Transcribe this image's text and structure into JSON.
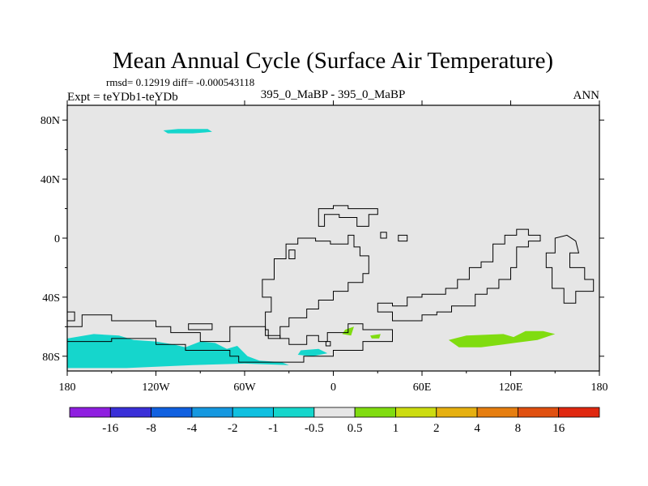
{
  "chart_data": {
    "type": "heatmap",
    "title": "Mean Annual Cycle (Surface Air Temperature)",
    "stats_line": "rmsd= 0.12919 diff= -0.000543118",
    "left_label": "Expt = teYDb1-teYDb",
    "center_label": "395_0_MaBP - 395_0_MaBP",
    "right_label": "ANN",
    "x_axis": {
      "range": [
        -180,
        180
      ],
      "ticks": [
        -180,
        -120,
        -60,
        0,
        60,
        120,
        180
      ],
      "tick_labels": [
        "180",
        "120W",
        "60W",
        "0",
        "60E",
        "120E",
        "180"
      ]
    },
    "y_axis": {
      "range": [
        -90,
        90
      ],
      "ticks": [
        80,
        40,
        0,
        -40,
        -80
      ],
      "tick_labels": [
        "80N",
        "40N",
        "0",
        "40S",
        "80S"
      ]
    },
    "colorbar": {
      "boundaries": [
        "-16",
        "-8",
        "-4",
        "-2",
        "-1",
        "-0.5",
        "0.5",
        "1",
        "2",
        "4",
        "8",
        "16"
      ],
      "colors": [
        "#8f1fe0",
        "#3a2fd8",
        "#1060e0",
        "#1598e0",
        "#10c0e0",
        "#15d6cc",
        "#e6e6e6",
        "#80dc10",
        "#ccdc10",
        "#e6b010",
        "#e67e10",
        "#e05010",
        "#e02810"
      ]
    },
    "regions": [
      {
        "name": "arctic-anomaly",
        "value_class": "-0.5 to -1",
        "points": [
          [
            -115,
            73
          ],
          [
            -105,
            74
          ],
          [
            -85,
            74
          ],
          [
            -82,
            72
          ],
          [
            -95,
            71
          ],
          [
            -112,
            71
          ]
        ]
      },
      {
        "name": "antarctic-anomaly",
        "value_class": "-0.5 to -1",
        "points": [
          [
            -180,
            -68
          ],
          [
            -162,
            -65
          ],
          [
            -145,
            -66
          ],
          [
            -135,
            -69
          ],
          [
            -120,
            -70
          ],
          [
            -108,
            -72
          ],
          [
            -100,
            -74
          ],
          [
            -90,
            -70
          ],
          [
            -80,
            -71
          ],
          [
            -72,
            -75
          ],
          [
            -65,
            -73
          ],
          [
            -58,
            -80
          ],
          [
            -50,
            -83
          ],
          [
            -35,
            -84
          ],
          [
            -30,
            -86
          ],
          [
            -60,
            -85
          ],
          [
            -95,
            -86
          ],
          [
            -140,
            -88
          ],
          [
            -180,
            -88
          ]
        ]
      },
      {
        "name": "weddell-anomaly",
        "value_class": "-0.5 to -1",
        "points": [
          [
            -22,
            -76
          ],
          [
            -10,
            -75
          ],
          [
            -4,
            -78
          ],
          [
            -14,
            -80
          ],
          [
            -24,
            -79
          ]
        ]
      },
      {
        "name": "small-positive-1",
        "value_class": "0.5 to 1",
        "points": [
          [
            8,
            -62
          ],
          [
            14,
            -60
          ],
          [
            12,
            -66
          ],
          [
            6,
            -65
          ]
        ]
      },
      {
        "name": "small-positive-2",
        "value_class": "0.5 to 1",
        "points": [
          [
            25,
            -66
          ],
          [
            32,
            -65
          ],
          [
            31,
            -68
          ],
          [
            26,
            -68
          ]
        ]
      },
      {
        "name": "east-antarctic-positive",
        "value_class": "0.5 to 1",
        "points": [
          [
            78,
            -69
          ],
          [
            90,
            -66
          ],
          [
            115,
            -65
          ],
          [
            122,
            -67
          ],
          [
            130,
            -63
          ],
          [
            142,
            -63
          ],
          [
            150,
            -65
          ],
          [
            138,
            -69
          ],
          [
            115,
            -72
          ],
          [
            100,
            -74
          ],
          [
            85,
            -74
          ]
        ]
      }
    ],
    "continent_outlines": [
      {
        "name": "north-continent",
        "points": [
          [
            -10,
            20
          ],
          [
            0,
            20
          ],
          [
            0,
            22
          ],
          [
            10,
            22
          ],
          [
            10,
            20
          ],
          [
            30,
            20
          ],
          [
            30,
            16
          ],
          [
            24,
            16
          ],
          [
            24,
            8
          ],
          [
            16,
            8
          ],
          [
            16,
            14
          ],
          [
            4,
            14
          ],
          [
            4,
            16
          ],
          [
            -6,
            16
          ],
          [
            -6,
            8
          ],
          [
            -10,
            8
          ]
        ]
      },
      {
        "name": "island-1",
        "points": [
          [
            32,
            4
          ],
          [
            36,
            4
          ],
          [
            36,
            0
          ],
          [
            32,
            0
          ]
        ]
      },
      {
        "name": "island-2",
        "points": [
          [
            44,
            2
          ],
          [
            50,
            2
          ],
          [
            50,
            -2
          ],
          [
            44,
            -2
          ]
        ]
      },
      {
        "name": "central-continent",
        "points": [
          [
            -24,
            0
          ],
          [
            -12,
            0
          ],
          [
            -12,
            -2
          ],
          [
            -2,
            -2
          ],
          [
            -2,
            -4
          ],
          [
            10,
            -4
          ],
          [
            10,
            2
          ],
          [
            14,
            2
          ],
          [
            14,
            -6
          ],
          [
            18,
            -6
          ],
          [
            18,
            -12
          ],
          [
            24,
            -12
          ],
          [
            24,
            -24
          ],
          [
            20,
            -24
          ],
          [
            20,
            -30
          ],
          [
            10,
            -30
          ],
          [
            10,
            -36
          ],
          [
            0,
            -36
          ],
          [
            0,
            -42
          ],
          [
            -10,
            -42
          ],
          [
            -10,
            -48
          ],
          [
            -18,
            -48
          ],
          [
            -18,
            -54
          ],
          [
            -30,
            -54
          ],
          [
            -30,
            -60
          ],
          [
            -36,
            -60
          ],
          [
            -36,
            -68
          ],
          [
            -44,
            -68
          ],
          [
            -44,
            -62
          ],
          [
            -46,
            -62
          ],
          [
            -46,
            -50
          ],
          [
            -42,
            -50
          ],
          [
            -42,
            -40
          ],
          [
            -48,
            -40
          ],
          [
            -48,
            -28
          ],
          [
            -40,
            -28
          ],
          [
            -40,
            -14
          ],
          [
            -32,
            -14
          ],
          [
            -32,
            -4
          ],
          [
            -24,
            -4
          ]
        ]
      },
      {
        "name": "side-island",
        "points": [
          [
            -30,
            -8
          ],
          [
            -26,
            -8
          ],
          [
            -26,
            -14
          ],
          [
            -30,
            -14
          ]
        ]
      },
      {
        "name": "east-continent",
        "points": [
          [
            30,
            -50
          ],
          [
            40,
            -50
          ],
          [
            40,
            -56
          ],
          [
            60,
            -56
          ],
          [
            60,
            -52
          ],
          [
            70,
            -52
          ],
          [
            70,
            -50
          ],
          [
            80,
            -50
          ],
          [
            80,
            -46
          ],
          [
            96,
            -46
          ],
          [
            96,
            -38
          ],
          [
            104,
            -38
          ],
          [
            104,
            -34
          ],
          [
            112,
            -34
          ],
          [
            112,
            -28
          ],
          [
            120,
            -28
          ],
          [
            120,
            -20
          ],
          [
            124,
            -20
          ],
          [
            124,
            -6
          ],
          [
            132,
            -6
          ],
          [
            132,
            -2
          ],
          [
            140,
            -2
          ],
          [
            140,
            2
          ],
          [
            132,
            2
          ],
          [
            132,
            6
          ],
          [
            124,
            6
          ],
          [
            124,
            2
          ],
          [
            116,
            2
          ],
          [
            116,
            -4
          ],
          [
            108,
            -4
          ],
          [
            108,
            -16
          ],
          [
            100,
            -16
          ],
          [
            100,
            -20
          ],
          [
            92,
            -20
          ],
          [
            92,
            -28
          ],
          [
            84,
            -28
          ],
          [
            84,
            -34
          ],
          [
            76,
            -34
          ],
          [
            76,
            -38
          ],
          [
            60,
            -38
          ],
          [
            60,
            -40
          ],
          [
            50,
            -40
          ],
          [
            50,
            -46
          ],
          [
            40,
            -46
          ],
          [
            40,
            -44
          ],
          [
            30,
            -44
          ]
        ]
      },
      {
        "name": "far-east-continent",
        "points": [
          [
            150,
            0
          ],
          [
            158,
            2
          ],
          [
            164,
            -2
          ],
          [
            166,
            -10
          ],
          [
            160,
            -10
          ],
          [
            160,
            -20
          ],
          [
            170,
            -20
          ],
          [
            170,
            -28
          ],
          [
            176,
            -28
          ],
          [
            176,
            -36
          ],
          [
            164,
            -36
          ],
          [
            164,
            -44
          ],
          [
            156,
            -44
          ],
          [
            156,
            -34
          ],
          [
            148,
            -34
          ],
          [
            148,
            -20
          ],
          [
            144,
            -20
          ],
          [
            144,
            -10
          ],
          [
            150,
            -10
          ]
        ]
      },
      {
        "name": "small-square",
        "points": [
          [
            -5,
            -70
          ],
          [
            -2,
            -70
          ],
          [
            -2,
            -73
          ],
          [
            -5,
            -73
          ]
        ]
      },
      {
        "name": "south-continent",
        "points": [
          [
            -180,
            -60
          ],
          [
            -170,
            -60
          ],
          [
            -170,
            -52
          ],
          [
            -150,
            -52
          ],
          [
            -150,
            -56
          ],
          [
            -120,
            -56
          ],
          [
            -120,
            -60
          ],
          [
            -110,
            -60
          ],
          [
            -110,
            -64
          ],
          [
            -90,
            -64
          ],
          [
            -90,
            -70
          ],
          [
            -70,
            -70
          ],
          [
            -70,
            -60
          ],
          [
            -46,
            -60
          ],
          [
            -46,
            -66
          ],
          [
            -36,
            -66
          ],
          [
            -36,
            -68
          ],
          [
            -30,
            -68
          ],
          [
            -30,
            -72
          ],
          [
            -18,
            -72
          ],
          [
            -18,
            -66
          ],
          [
            -10,
            -66
          ],
          [
            -10,
            -70
          ],
          [
            -4,
            -70
          ],
          [
            -4,
            -64
          ],
          [
            10,
            -64
          ],
          [
            10,
            -58
          ],
          [
            20,
            -58
          ],
          [
            20,
            -62
          ],
          [
            40,
            -62
          ],
          [
            40,
            -70
          ],
          [
            20,
            -70
          ],
          [
            20,
            -76
          ],
          [
            0,
            -76
          ],
          [
            0,
            -80
          ],
          [
            -20,
            -80
          ],
          [
            -20,
            -84
          ],
          [
            -64,
            -84
          ],
          [
            -64,
            -80
          ],
          [
            -70,
            -80
          ],
          [
            -70,
            -76
          ],
          [
            -100,
            -76
          ],
          [
            -100,
            -72
          ],
          [
            -120,
            -72
          ],
          [
            -120,
            -68
          ],
          [
            -150,
            -68
          ],
          [
            -150,
            -70
          ],
          [
            -180,
            -70
          ]
        ]
      },
      {
        "name": "south-small-1",
        "points": [
          [
            -180,
            -50
          ],
          [
            -175,
            -50
          ],
          [
            -175,
            -56
          ],
          [
            -180,
            -56
          ]
        ]
      },
      {
        "name": "south-small-2",
        "points": [
          [
            -98,
            -58
          ],
          [
            -82,
            -58
          ],
          [
            -82,
            -62
          ],
          [
            -98,
            -62
          ]
        ]
      }
    ]
  }
}
